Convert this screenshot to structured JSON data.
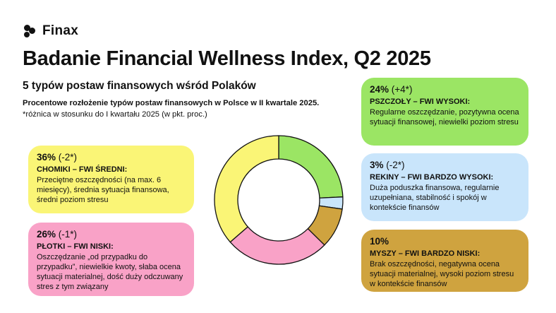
{
  "brand": {
    "name": "Finax"
  },
  "header": {
    "title": "Badanie Financial Wellness Index, Q2 2025",
    "subtitle": "5 typów postaw finansowych wśród Polaków",
    "description": "Procentowe rozłożenie typów postaw finansowych w Polsce w II kwartale 2025.",
    "note": "*różnica w stosunku do I kwartału 2025 (w pkt. proc.)"
  },
  "cards": {
    "pszczoly": {
      "percent": "24%",
      "change": "(+4*)",
      "name": "PSZCZOŁY – FWI WYSOKI:",
      "text": "Regularne oszczędzanie, pozytywna ocena sytuacji finansowej, niewielki poziom stresu",
      "color": "#9be564"
    },
    "rekiny": {
      "percent": "3%",
      "change": "(-2*)",
      "name": "REKINY – FWI BARDZO WYSOKI:",
      "text": "Duża poduszka finansowa, regularnie uzupełniana, stabilność i spokój w kontekście finansów",
      "color": "#c9e5fb"
    },
    "myszy": {
      "percent": "10%",
      "change": "",
      "name": "MYSZY – FWI BARDZO NISKI:",
      "text": "Brak oszczędności, negatywna ocena sytuacji materialnej, wysoki poziom stresu w kontekście finansów",
      "color": "#cfa33f"
    },
    "plotki": {
      "percent": "26%",
      "change": "(-1*)",
      "name": "PŁOTKI – FWI NISKI:",
      "text": "Oszczędzanie „od przypadku do przypadku”, niewielkie kwoty, słaba ocena sytuacji materialnej, dość duży odczuwany stres z tym związany",
      "color": "#f9a2c7"
    },
    "chomiki": {
      "percent": "36%",
      "change": "(-2*)",
      "name": "CHOMIKI – FWI ŚREDNI:",
      "text": "Przeciętne oszczędności (na max. 6 miesięcy), średnia sytuacja finansowa, średni poziom stresu",
      "color": "#faf576"
    }
  },
  "chart_data": {
    "type": "pie",
    "variant": "donut",
    "start": "top",
    "direction": "clockwise",
    "series": [
      {
        "name": "PSZCZOŁY",
        "value": 24,
        "color": "#9be564"
      },
      {
        "name": "REKINY",
        "value": 3,
        "color": "#c9e5fb"
      },
      {
        "name": "MYSZY",
        "value": 10,
        "color": "#cfa33f"
      },
      {
        "name": "PŁOTKI",
        "value": 26,
        "color": "#f9a2c7"
      },
      {
        "name": "CHOMIKI",
        "value": 36,
        "color": "#faf576"
      }
    ]
  }
}
